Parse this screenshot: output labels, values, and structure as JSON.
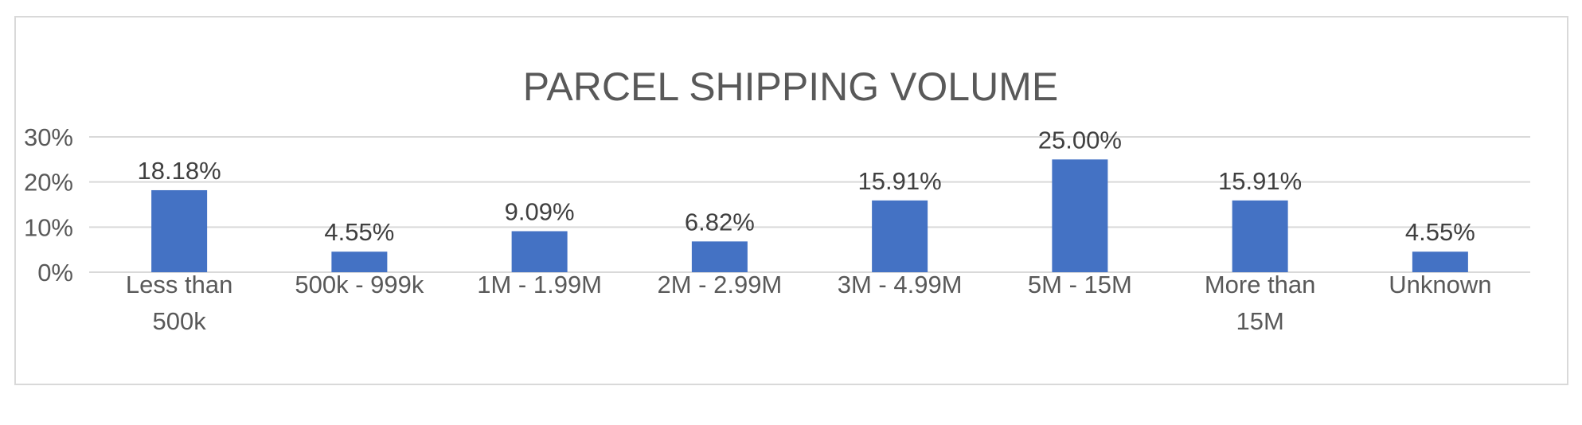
{
  "chart_data": {
    "type": "bar",
    "title": "PARCEL SHIPPING VOLUME",
    "categories": [
      [
        "Less than",
        "500k"
      ],
      [
        "500k - 999k"
      ],
      [
        "1M - 1.99M"
      ],
      [
        "2M - 2.99M"
      ],
      [
        "3M - 4.99M"
      ],
      [
        "5M - 15M"
      ],
      [
        "More than",
        "15M"
      ],
      [
        "Unknown"
      ]
    ],
    "values": [
      18.18,
      4.55,
      9.09,
      6.82,
      15.91,
      25.0,
      15.91,
      4.55
    ],
    "data_labels": [
      "18.18%",
      "4.55%",
      "9.09%",
      "6.82%",
      "15.91%",
      "25.00%",
      "15.91%",
      "4.55%"
    ],
    "y_ticks": [
      {
        "value": 0,
        "label": "0%"
      },
      {
        "value": 10,
        "label": "10%"
      },
      {
        "value": 20,
        "label": "20%"
      },
      {
        "value": 30,
        "label": "30%"
      }
    ],
    "ylim": [
      0,
      30
    ],
    "xlabel": "",
    "ylabel": "",
    "grid": true,
    "legend": "none",
    "bar_color": "#4472C4",
    "grid_color": "#D9D9D9"
  }
}
